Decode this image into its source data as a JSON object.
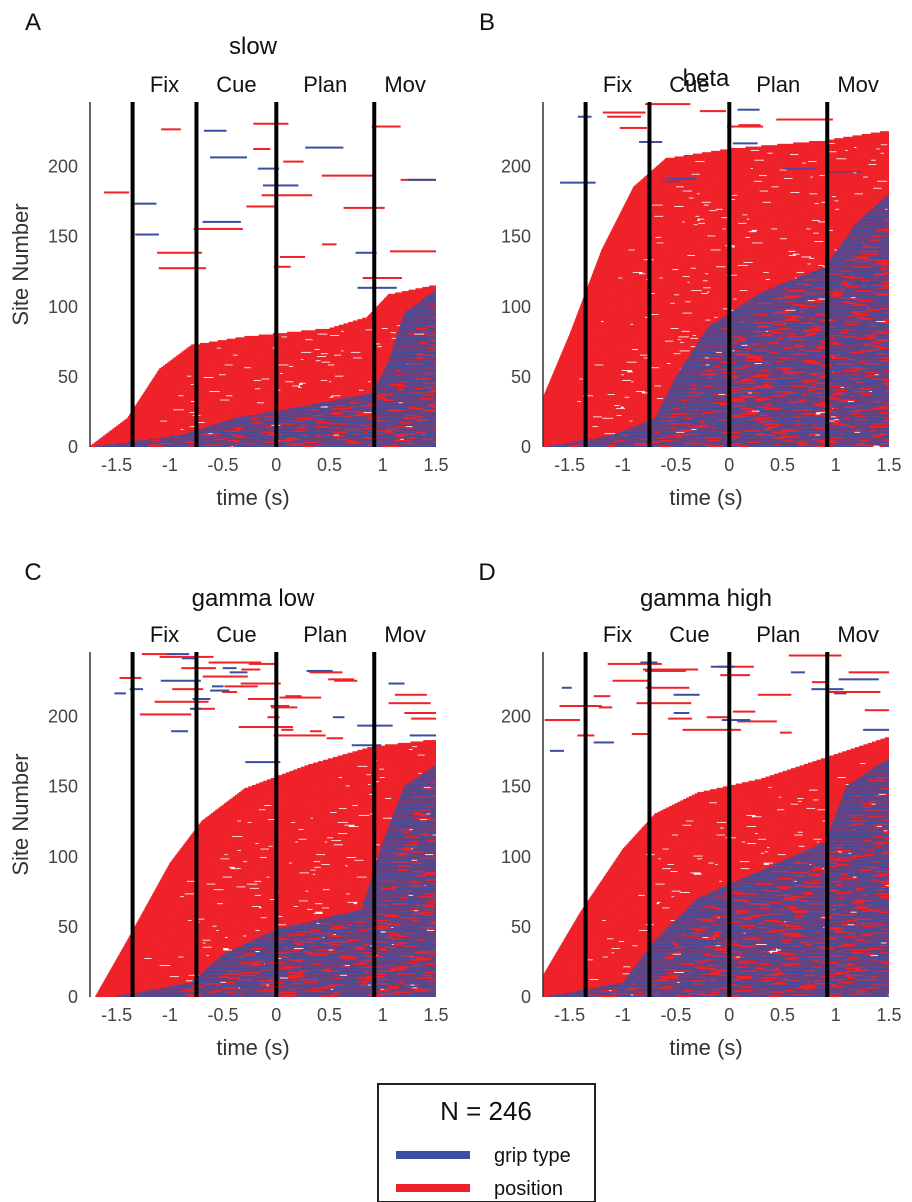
{
  "n_label": "N = 246",
  "legend": {
    "entries": [
      {
        "label": "grip type",
        "color": "#3a4fa0"
      },
      {
        "label": "position",
        "color": "#ee2228"
      }
    ]
  },
  "colors": {
    "grip": "#3a4fa0",
    "position": "#ee2228",
    "epoch_line": "#000000",
    "axis": "#333333"
  },
  "chart_data": [
    {
      "type": "raster",
      "letter": "A",
      "title": "slow",
      "xlabel": "time (s)",
      "ylabel": "Site Number",
      "xlim": [
        -1.75,
        1.5
      ],
      "ylim": [
        0,
        246
      ],
      "xticks": [
        -1.5,
        -1,
        -0.5,
        0,
        0.5,
        1,
        1.5
      ],
      "xtick_labels": [
        "-1.5",
        "-1",
        "-0.5",
        "0",
        "0.5",
        "1",
        "1.5"
      ],
      "yticks": [
        0,
        50,
        100,
        150,
        200
      ],
      "epoch_lines": [
        -1.35,
        -0.75,
        0,
        0.92
      ],
      "epoch_labels": [
        "Fix",
        "Cue",
        "Plan",
        "Mov"
      ],
      "onset_curve_position": [
        [
          -1.75,
          0
        ],
        [
          -1.4,
          20
        ],
        [
          -1.1,
          55
        ],
        [
          -0.8,
          72
        ],
        [
          -0.3,
          78
        ],
        [
          0.5,
          84
        ],
        [
          0.85,
          92
        ],
        [
          1.05,
          108
        ],
        [
          1.5,
          115
        ]
      ],
      "onset_curve_grip": [
        [
          -1.7,
          0
        ],
        [
          -0.9,
          8
        ],
        [
          -0.4,
          20
        ],
        [
          0.2,
          28
        ],
        [
          0.9,
          38
        ],
        [
          1.05,
          60
        ],
        [
          1.2,
          95
        ],
        [
          1.5,
          112
        ]
      ],
      "sparse_upper": true
    },
    {
      "type": "raster",
      "letter": "B",
      "title": "beta",
      "xlabel": "time (s)",
      "ylabel": "",
      "xlim": [
        -1.75,
        1.5
      ],
      "ylim": [
        0,
        246
      ],
      "xticks": [
        -1.5,
        -1,
        -0.5,
        0,
        0.5,
        1,
        1.5
      ],
      "xtick_labels": [
        "-1.5",
        "-1",
        "-0.5",
        "0",
        "0.5",
        "1",
        "1.5"
      ],
      "yticks": [
        0,
        50,
        100,
        150,
        200
      ],
      "epoch_lines": [
        -1.35,
        -0.75,
        0,
        0.92
      ],
      "epoch_labels": [
        "Fix",
        "Cue",
        "Plan",
        "Mov"
      ],
      "onset_curve_position": [
        [
          -1.75,
          35
        ],
        [
          -1.5,
          80
        ],
        [
          -1.2,
          140
        ],
        [
          -0.9,
          185
        ],
        [
          -0.6,
          205
        ],
        [
          0.0,
          212
        ],
        [
          0.9,
          218
        ],
        [
          1.5,
          225
        ]
      ],
      "onset_curve_grip": [
        [
          -1.7,
          0
        ],
        [
          -1.1,
          8
        ],
        [
          -0.7,
          20
        ],
        [
          -0.5,
          50
        ],
        [
          -0.2,
          85
        ],
        [
          0.3,
          110
        ],
        [
          0.9,
          128
        ],
        [
          1.2,
          160
        ],
        [
          1.5,
          180
        ]
      ],
      "sparse_upper": false
    },
    {
      "type": "raster",
      "letter": "C",
      "title": "gamma low",
      "xlabel": "time (s)",
      "ylabel": "Site Number",
      "xlim": [
        -1.75,
        1.5
      ],
      "ylim": [
        0,
        246
      ],
      "xticks": [
        -1.5,
        -1,
        -0.5,
        0,
        0.5,
        1,
        1.5
      ],
      "xtick_labels": [
        "-1.5",
        "-1",
        "-0.5",
        "0",
        "0.5",
        "1",
        "1.5"
      ],
      "yticks": [
        0,
        50,
        100,
        150,
        200
      ],
      "epoch_lines": [
        -1.35,
        -0.75,
        0,
        0.92
      ],
      "epoch_labels": [
        "Fix",
        "Cue",
        "Plan",
        "Mov"
      ],
      "onset_curve_position": [
        [
          -1.7,
          0
        ],
        [
          -1.4,
          40
        ],
        [
          -1.0,
          95
        ],
        [
          -0.7,
          125
        ],
        [
          -0.3,
          148
        ],
        [
          0.3,
          165
        ],
        [
          0.9,
          178
        ],
        [
          1.5,
          183
        ]
      ],
      "onset_curve_grip": [
        [
          -1.5,
          0
        ],
        [
          -0.8,
          10
        ],
        [
          -0.5,
          30
        ],
        [
          0.0,
          48
        ],
        [
          0.8,
          62
        ],
        [
          1.0,
          110
        ],
        [
          1.2,
          150
        ],
        [
          1.5,
          165
        ]
      ],
      "sparse_upper": false
    },
    {
      "type": "raster",
      "letter": "D",
      "title": "gamma high",
      "xlabel": "time (s)",
      "ylabel": "",
      "xlim": [
        -1.75,
        1.5
      ],
      "ylim": [
        0,
        246
      ],
      "xticks": [
        -1.5,
        -1,
        -0.5,
        0,
        0.5,
        1,
        1.5
      ],
      "xtick_labels": [
        "-1.5",
        "-1",
        "-0.5",
        "0",
        "0.5",
        "1",
        "1.5"
      ],
      "yticks": [
        0,
        50,
        100,
        150,
        200
      ],
      "epoch_lines": [
        -1.35,
        -0.75,
        0,
        0.92
      ],
      "epoch_labels": [
        "Fix",
        "Cue",
        "Plan",
        "Mov"
      ],
      "onset_curve_position": [
        [
          -1.75,
          15
        ],
        [
          -1.4,
          60
        ],
        [
          -1.0,
          105
        ],
        [
          -0.7,
          130
        ],
        [
          -0.3,
          145
        ],
        [
          0.3,
          155
        ],
        [
          0.9,
          170
        ],
        [
          1.5,
          185
        ]
      ],
      "onset_curve_grip": [
        [
          -1.7,
          0
        ],
        [
          -1.0,
          10
        ],
        [
          -0.7,
          40
        ],
        [
          -0.3,
          70
        ],
        [
          0.3,
          90
        ],
        [
          0.9,
          110
        ],
        [
          1.1,
          150
        ],
        [
          1.5,
          170
        ]
      ],
      "sparse_upper": false
    }
  ]
}
